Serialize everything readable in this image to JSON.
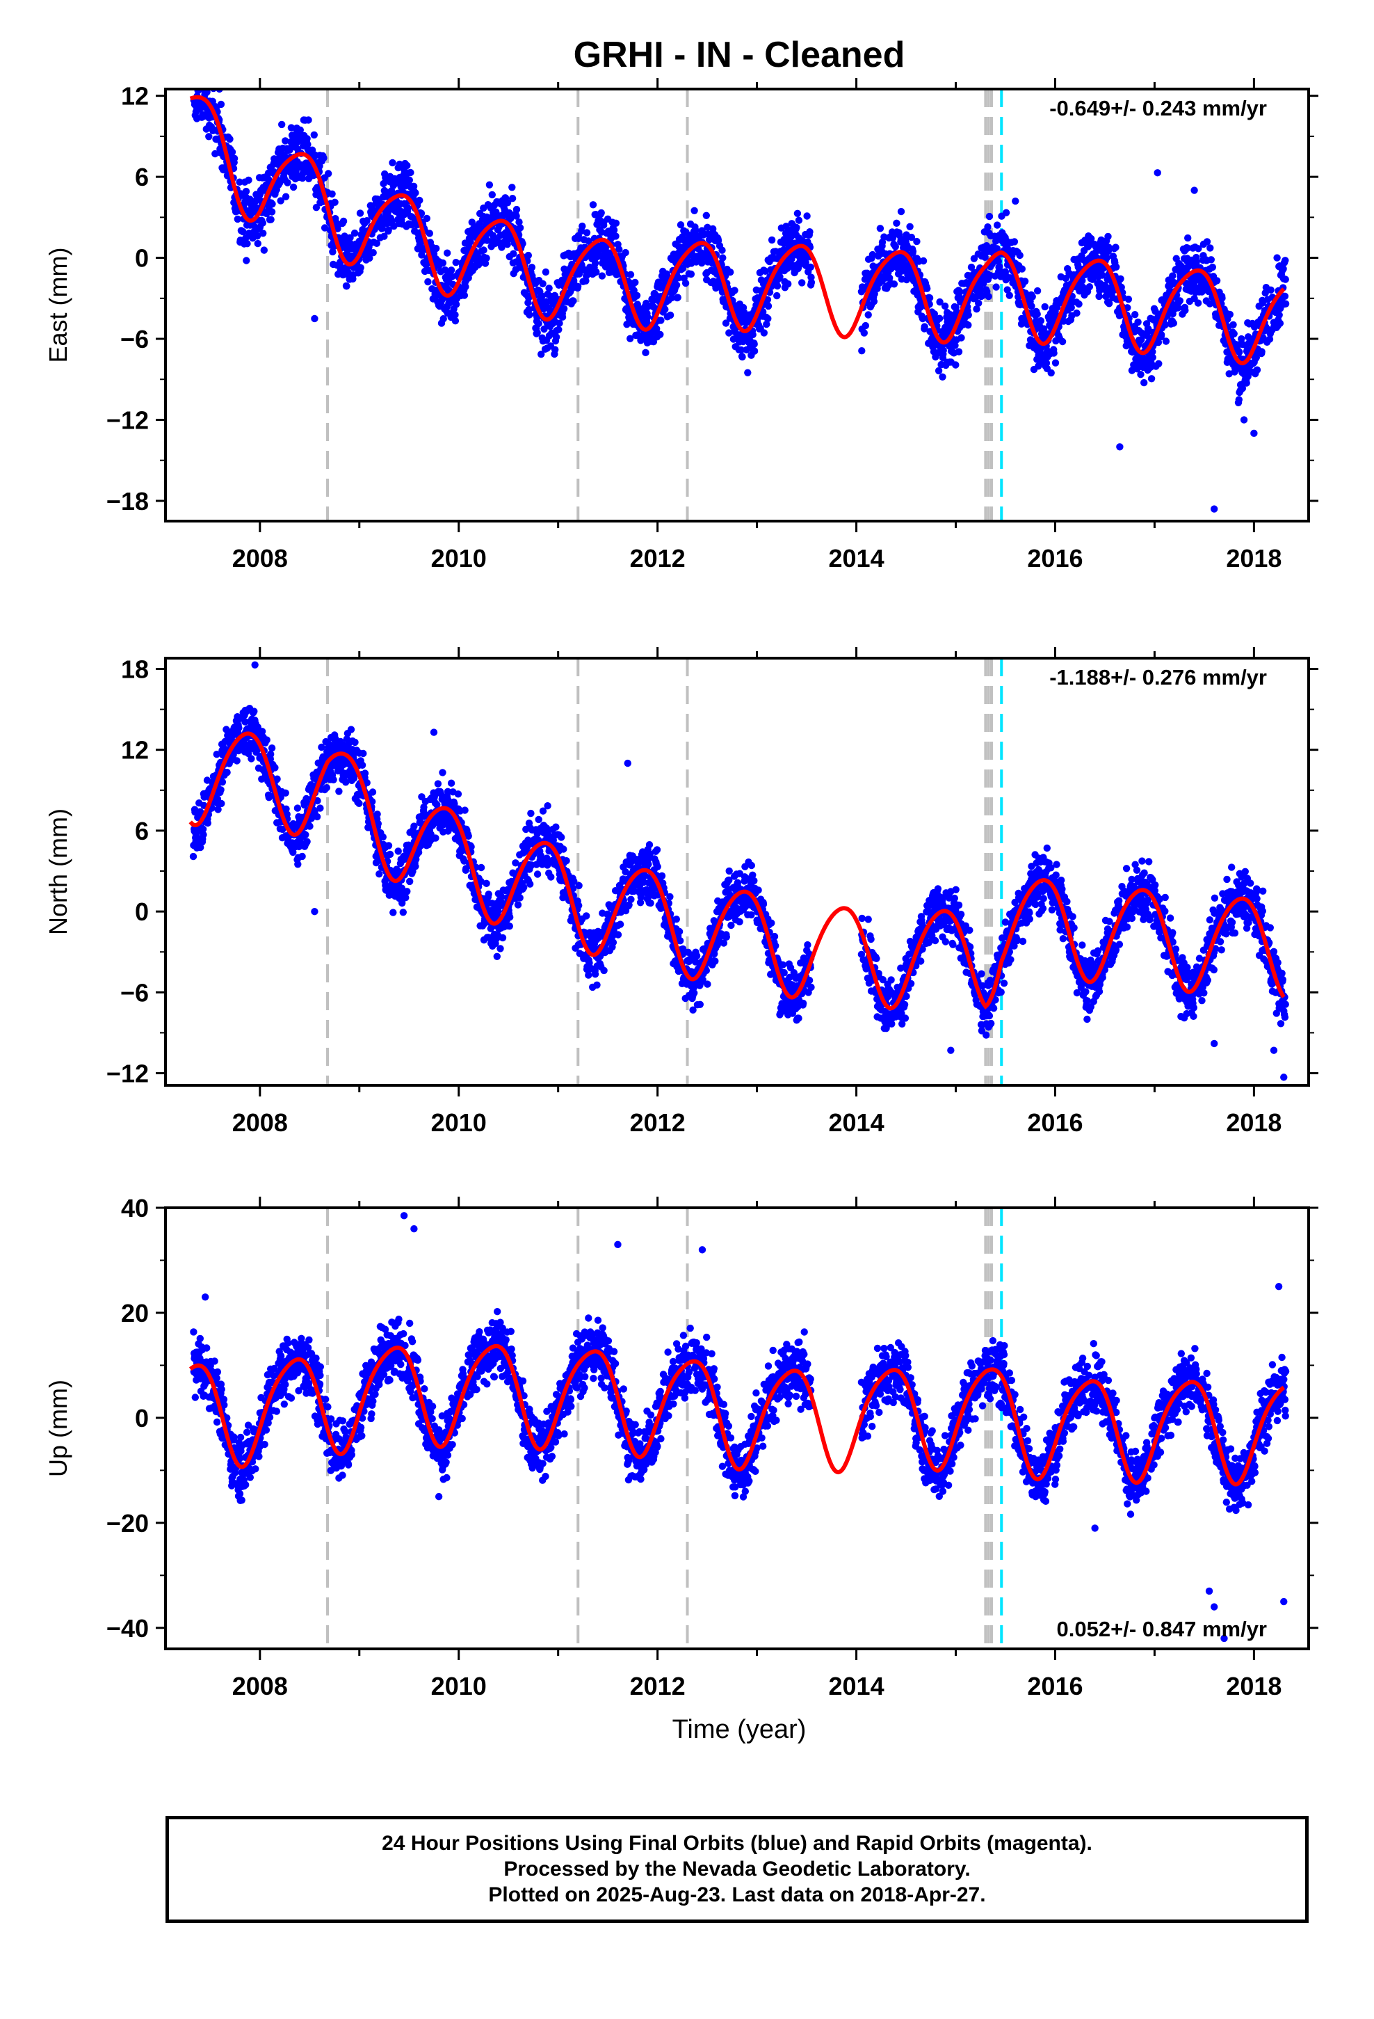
{
  "title": "GRHI  - IN - Cleaned",
  "xlabel": "Time (year)",
  "colors": {
    "data": "#0000ff",
    "model": "#ff0000",
    "offset_line": "#c0c0c0",
    "antenna_line": "#00e5ff"
  },
  "footer": {
    "line1": "24 Hour Positions Using Final Orbits (blue) and Rapid Orbits (magenta).",
    "line2": "Processed by the Nevada Geodetic Laboratory.",
    "line3": "Plotted on 2025-Aug-23. Last data on 2018-Apr-27."
  },
  "chart_data": [
    {
      "type": "scatter",
      "component": "East",
      "ylabel": "East (mm)",
      "rate_label": "-0.649+/- 0.243 mm/yr",
      "xlim": [
        2007.05,
        2018.55
      ],
      "ylim": [
        -19.5,
        12.5
      ],
      "yticks": [
        12,
        6,
        0,
        -6,
        -12,
        -18
      ],
      "xticks": [
        2008,
        2010,
        2012,
        2014,
        2016,
        2018
      ],
      "offset_lines": [
        2008.68,
        2011.2,
        2012.3,
        2015.3,
        2015.33,
        2015.36
      ],
      "antenna_line": 2015.46,
      "model": {
        "mean": [
          [
            2007.3,
            9.6
          ],
          [
            2008.0,
            5.8
          ],
          [
            2008.68,
            4.2
          ],
          [
            2009.0,
            2.6
          ],
          [
            2010.0,
            0.6
          ],
          [
            2011.2,
            -1.5
          ],
          [
            2012.3,
            -1.8
          ],
          [
            2013.0,
            -1.8
          ],
          [
            2014.0,
            -2.3
          ],
          [
            2015.3,
            -2.8
          ],
          [
            2015.46,
            -2.5
          ],
          [
            2016.0,
            -2.8
          ],
          [
            2017.0,
            -3.5
          ],
          [
            2018.3,
            -4.5
          ]
        ],
        "amp": 3.2,
        "phase": 2.5,
        "amp2": 0.5,
        "phase2": 1.2
      },
      "noise": 1.7,
      "gap": [
        2013.55,
        2014.05
      ],
      "outliers": [
        [
          2018.0,
          -13
        ],
        [
          2017.9,
          -12
        ],
        [
          2017.6,
          -18.6
        ],
        [
          2017.03,
          6.3
        ],
        [
          2016.65,
          -14
        ],
        [
          2017.4,
          5
        ],
        [
          2008.55,
          -4.5
        ],
        [
          2015.6,
          4.2
        ]
      ]
    },
    {
      "type": "scatter",
      "component": "North",
      "ylabel": "North (mm)",
      "rate_label": "-1.188+/- 0.276 mm/yr",
      "xlim": [
        2007.05,
        2018.55
      ],
      "ylim": [
        -12.9,
        18.8
      ],
      "yticks": [
        18,
        12,
        6,
        0,
        -6,
        -12
      ],
      "xticks": [
        2008,
        2010,
        2012,
        2014,
        2016,
        2018
      ],
      "offset_lines": [
        2008.68,
        2011.2,
        2012.3,
        2015.3,
        2015.33,
        2015.36
      ],
      "antenna_line": 2015.46,
      "model": {
        "mean": [
          [
            2007.3,
            10.4
          ],
          [
            2008.0,
            9.8
          ],
          [
            2008.68,
            9.5
          ],
          [
            2009.0,
            7.5
          ],
          [
            2010.0,
            3.9
          ],
          [
            2011.2,
            1.0
          ],
          [
            2012.3,
            -1.0
          ],
          [
            2013.0,
            -2.0
          ],
          [
            2014.0,
            -3.2
          ],
          [
            2015.3,
            -3.3
          ],
          [
            2015.46,
            -0.9
          ],
          [
            2016.0,
            -1.0
          ],
          [
            2017.0,
            -1.8
          ],
          [
            2018.3,
            -2.6
          ]
        ],
        "amp": 3.6,
        "phase": 5.4,
        "amp2": 0.4,
        "phase2": 0.8
      },
      "noise": 1.5,
      "gap": [
        2013.55,
        2014.05
      ],
      "outliers": [
        [
          2007.95,
          18.3
        ],
        [
          2009.75,
          13.3
        ],
        [
          2011.7,
          11
        ],
        [
          2018.3,
          -12.3
        ],
        [
          2017.6,
          -9.8
        ],
        [
          2018.2,
          -10.3
        ],
        [
          2008.55,
          0
        ],
        [
          2014.95,
          -10.3
        ]
      ]
    },
    {
      "type": "scatter",
      "component": "Up",
      "ylabel": "Up (mm)",
      "rate_label": "0.052+/- 0.847 mm/yr",
      "xlim": [
        2007.05,
        2018.55
      ],
      "ylim": [
        -44,
        40
      ],
      "yticks": [
        40,
        20,
        0,
        -20,
        -40
      ],
      "xticks": [
        2008,
        2010,
        2012,
        2014,
        2016,
        2018
      ],
      "offset_lines": [
        2008.68,
        2011.2,
        2012.3,
        2015.3,
        2015.33,
        2015.36
      ],
      "antenna_line": 2015.46,
      "model": {
        "mean": [
          [
            2007.3,
            1.5
          ],
          [
            2008.0,
            1.5
          ],
          [
            2009.0,
            4.5
          ],
          [
            2010.0,
            5.5
          ],
          [
            2011.2,
            4.5
          ],
          [
            2012.3,
            2.5
          ],
          [
            2013.0,
            0.5
          ],
          [
            2014.0,
            0.5
          ],
          [
            2015.3,
            1.0
          ],
          [
            2016.0,
            -1.5
          ],
          [
            2017.0,
            -1.5
          ],
          [
            2018.3,
            -2.0
          ]
        ],
        "amp": 9.5,
        "phase": 2.1,
        "amp2": 1.5,
        "phase2": 0.5
      },
      "noise": 4.2,
      "gap": [
        2013.55,
        2014.05
      ],
      "outliers": [
        [
          2009.45,
          38.5
        ],
        [
          2009.55,
          36
        ],
        [
          2011.6,
          33
        ],
        [
          2012.45,
          32
        ],
        [
          2017.55,
          -33
        ],
        [
          2017.6,
          -36
        ],
        [
          2018.3,
          -35
        ],
        [
          2018.25,
          25
        ],
        [
          2009.8,
          -15
        ],
        [
          2016.4,
          -21
        ],
        [
          2017.7,
          -42
        ],
        [
          2007.45,
          23
        ]
      ]
    }
  ]
}
